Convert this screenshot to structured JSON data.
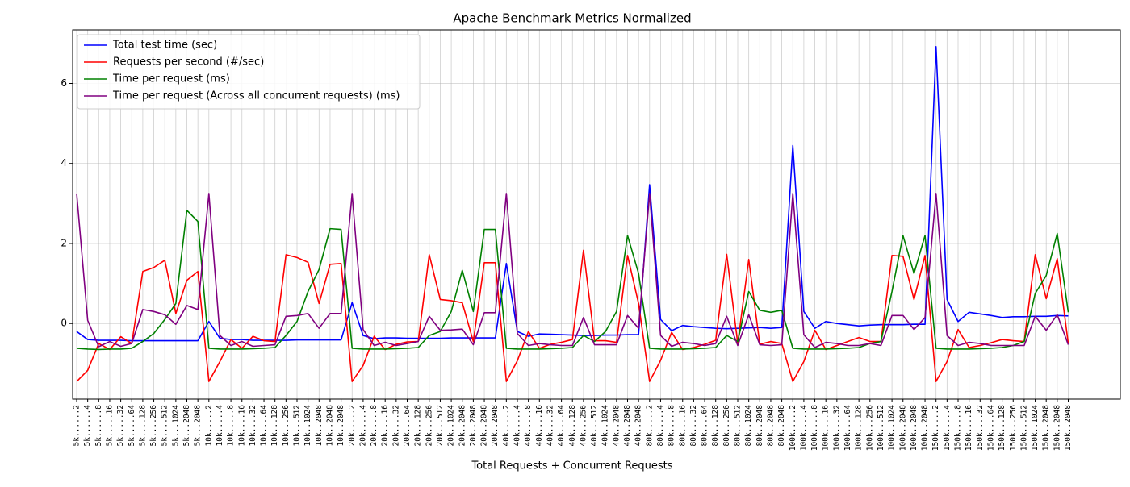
{
  "chart_data": {
    "type": "line",
    "title": "Apache Benchmark Metrics Normalized",
    "x_label": "Total Requests + Concurrent Requests",
    "categories": [
      "5k......2",
      "5k......4",
      "5k......8",
      "5k.....16",
      "5k.....32",
      "5k.....64",
      "5k....128",
      "5k....256",
      "5k....512",
      "5k...1024",
      "5k...2048",
      "5k...2048",
      "10k.....2",
      "10k.....4",
      "10k.....8",
      "10k....16",
      "10k....32",
      "10k....64",
      "10k...128",
      "10k...256",
      "10k...512",
      "10k..1024",
      "10k..2048",
      "10k..2048",
      "10k..2048",
      "20k.....2",
      "20k.....4",
      "20k.....8",
      "20k....16",
      "20k....32",
      "20k....64",
      "20k...128",
      "20k...256",
      "20k...512",
      "20k..1024",
      "20k..2048",
      "20k..2048",
      "20k..2048",
      "20k..2048",
      "40k.....2",
      "40k.....4",
      "40k.....8",
      "40k....16",
      "40k....32",
      "40k....64",
      "40k...128",
      "40k...256",
      "40k...512",
      "40k..1024",
      "40k..2048",
      "40k..2048",
      "40k..2048",
      "80k.....2",
      "80k.....4",
      "80k.....8",
      "80k....16",
      "80k....32",
      "80k....64",
      "80k...128",
      "80k...256",
      "80k...512",
      "80k..1024",
      "80k..2048",
      "80k..2048",
      "80k..2048",
      "100k.....2",
      "100k.....4",
      "100k.....8",
      "100k....16",
      "100k....32",
      "100k....64",
      "100k...128",
      "100k...256",
      "100k...512",
      "100k..1024",
      "100k..2048",
      "100k..2048",
      "100k..2048",
      "150k.....2",
      "150k.....4",
      "150k.....8",
      "150k....16",
      "150k....32",
      "150k....64",
      "150k...128",
      "150k...256",
      "150k...512",
      "150k..1024",
      "150k..2048",
      "150k..2048",
      "150k..2048"
    ],
    "series": [
      {
        "name": "Total test time (sec)",
        "color": "#0000ff",
        "values": [
          -0.2,
          -0.4,
          -0.42,
          -0.42,
          -0.42,
          -0.43,
          -0.43,
          -0.43,
          -0.43,
          -0.43,
          -0.43,
          -0.43,
          0.05,
          -0.37,
          -0.4,
          -0.4,
          -0.42,
          -0.42,
          -0.42,
          -0.42,
          -0.41,
          -0.41,
          -0.41,
          -0.41,
          -0.41,
          0.52,
          -0.3,
          -0.38,
          -0.36,
          -0.36,
          -0.37,
          -0.37,
          -0.37,
          -0.37,
          -0.36,
          -0.36,
          -0.36,
          -0.36,
          -0.36,
          1.5,
          -0.2,
          -0.32,
          -0.26,
          -0.27,
          -0.28,
          -0.29,
          -0.3,
          -0.3,
          -0.29,
          -0.29,
          -0.28,
          -0.28,
          3.47,
          0.1,
          -0.18,
          -0.05,
          -0.08,
          -0.1,
          -0.12,
          -0.13,
          -0.12,
          -0.11,
          -0.1,
          -0.12,
          -0.1,
          4.45,
          0.3,
          -0.12,
          0.05,
          0.0,
          -0.03,
          -0.06,
          -0.04,
          -0.03,
          -0.03,
          -0.03,
          -0.02,
          -0.02,
          6.92,
          0.6,
          0.05,
          0.28,
          0.24,
          0.2,
          0.15,
          0.17,
          0.17,
          0.18,
          0.18,
          0.2,
          0.19
        ]
      },
      {
        "name": "Requests per second (#/sec)",
        "color": "#ff0000",
        "values": [
          -1.45,
          -1.17,
          -0.5,
          -0.65,
          -0.33,
          -0.5,
          1.3,
          1.4,
          1.58,
          0.25,
          1.08,
          1.3,
          -1.45,
          -0.95,
          -0.4,
          -0.62,
          -0.32,
          -0.43,
          -0.45,
          1.72,
          1.65,
          1.53,
          0.5,
          1.48,
          1.5,
          -1.45,
          -1.05,
          -0.32,
          -0.65,
          -0.52,
          -0.46,
          -0.45,
          1.72,
          0.6,
          0.57,
          0.52,
          -0.45,
          1.52,
          1.52,
          -1.45,
          -0.93,
          -0.2,
          -0.62,
          -0.52,
          -0.47,
          -0.4,
          1.83,
          -0.43,
          -0.43,
          -0.47,
          1.7,
          0.5,
          -1.45,
          -0.92,
          -0.22,
          -0.65,
          -0.6,
          -0.52,
          -0.42,
          1.73,
          -0.5,
          1.6,
          -0.52,
          -0.45,
          -0.5,
          -1.45,
          -0.95,
          -0.17,
          -0.65,
          -0.55,
          -0.45,
          -0.35,
          -0.45,
          -0.45,
          1.7,
          1.68,
          0.6,
          1.7,
          -1.45,
          -0.95,
          -0.15,
          -0.6,
          -0.55,
          -0.48,
          -0.4,
          -0.43,
          -0.45,
          1.72,
          0.62,
          1.62,
          -0.5
        ]
      },
      {
        "name": "Time per request (ms)",
        "color": "#008000",
        "values": [
          -0.62,
          -0.64,
          -0.65,
          -0.64,
          -0.64,
          -0.62,
          -0.45,
          -0.25,
          0.1,
          0.5,
          2.83,
          2.55,
          -0.62,
          -0.64,
          -0.64,
          -0.64,
          -0.63,
          -0.62,
          -0.6,
          -0.3,
          0.05,
          0.8,
          1.35,
          2.37,
          2.35,
          -0.62,
          -0.64,
          -0.64,
          -0.64,
          -0.63,
          -0.62,
          -0.6,
          -0.3,
          -0.2,
          0.3,
          1.33,
          0.3,
          2.35,
          2.35,
          -0.62,
          -0.64,
          -0.64,
          -0.64,
          -0.63,
          -0.62,
          -0.6,
          -0.3,
          -0.45,
          -0.2,
          0.3,
          2.2,
          1.25,
          -0.62,
          -0.64,
          -0.64,
          -0.64,
          -0.63,
          -0.62,
          -0.6,
          -0.3,
          -0.45,
          0.8,
          0.33,
          0.28,
          0.33,
          -0.62,
          -0.64,
          -0.64,
          -0.64,
          -0.63,
          -0.62,
          -0.6,
          -0.5,
          -0.45,
          0.8,
          2.2,
          1.25,
          2.2,
          -0.62,
          -0.64,
          -0.64,
          -0.64,
          -0.63,
          -0.62,
          -0.6,
          -0.55,
          -0.45,
          0.75,
          1.2,
          2.25,
          0.28
        ]
      },
      {
        "name": "Time per request (Across all concurrent requests) (ms)",
        "color": "#800080",
        "values": [
          3.25,
          0.08,
          -0.58,
          -0.45,
          -0.57,
          -0.5,
          0.35,
          0.3,
          0.22,
          -0.02,
          0.45,
          0.35,
          3.25,
          -0.3,
          -0.55,
          -0.45,
          -0.57,
          -0.55,
          -0.53,
          0.18,
          0.2,
          0.25,
          -0.12,
          0.25,
          0.25,
          3.25,
          -0.15,
          -0.55,
          -0.47,
          -0.55,
          -0.5,
          -0.45,
          0.18,
          -0.17,
          -0.16,
          -0.14,
          -0.53,
          0.27,
          0.27,
          3.25,
          -0.25,
          -0.55,
          -0.5,
          -0.53,
          -0.55,
          -0.55,
          0.15,
          -0.53,
          -0.53,
          -0.53,
          0.2,
          -0.12,
          3.25,
          -0.3,
          -0.57,
          -0.47,
          -0.5,
          -0.55,
          -0.5,
          0.18,
          -0.55,
          0.22,
          -0.53,
          -0.55,
          -0.53,
          3.25,
          -0.28,
          -0.6,
          -0.47,
          -0.5,
          -0.55,
          -0.55,
          -0.5,
          -0.55,
          0.2,
          0.2,
          -0.15,
          0.15,
          3.25,
          -0.3,
          -0.55,
          -0.47,
          -0.5,
          -0.55,
          -0.55,
          -0.55,
          -0.55,
          0.18,
          -0.17,
          0.22,
          -0.53
        ]
      }
    ],
    "ylim": [
      -1.89,
      7.34
    ],
    "yticks": [
      0,
      2,
      4,
      6
    ],
    "grid": true,
    "legend": "upper-left"
  }
}
